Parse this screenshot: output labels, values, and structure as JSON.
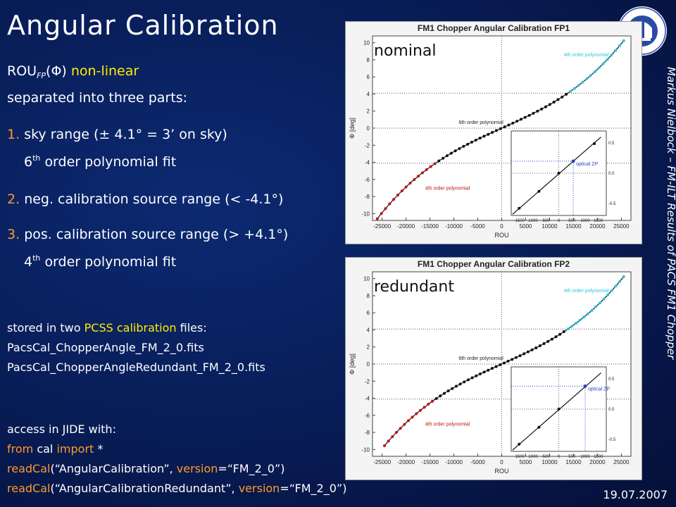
{
  "slide": {
    "title": "Angular Calibration",
    "rou_label": "ROU",
    "rou_sub": "FP",
    "rou_arg": "(Φ)",
    "nonlinear": "non-linear",
    "separated": "separated into three parts:",
    "item1_num": "1.",
    "item1_text": "sky range (± 4.1° = 3’ on sky)",
    "item1_fit_pre": "6",
    "item1_fit_sup": "th",
    "item1_fit_post": "order polynomial fit",
    "item2_num": "2.",
    "item2_text": "neg. calibration source range (< -4.1°)",
    "item3_num": "3.",
    "item3_text": "pos. calibration source range (> +4.1°)",
    "item3_fit_pre": "4",
    "item3_fit_sup": "th",
    "item3_fit_post": "order polynomial fit",
    "stored_pre": "stored in two",
    "stored_pcss": "PCSS",
    "stored_cal": "calibration",
    "stored_post": "files:",
    "file1": "PacsCal_ChopperAngle_FM_2_0.fits",
    "file2": "PacsCal_ChopperAngleRedundant_FM_2_0.fits",
    "access": "access in JIDE with:",
    "code1_from": "from",
    "code1_cal": "cal",
    "code1_import": "import",
    "code1_star": "*",
    "code2_fn": "readCal",
    "code2_arg": "(“AngularCalibration”,",
    "code2_kw": "version",
    "code2_val": "=“FM_2_0”)",
    "code3_fn": "readCal",
    "code3_arg": "(“AngularCalibrationRedundant”,",
    "code3_kw": "version",
    "code3_val": "=“FM_2_0”)",
    "sidebar": "Markus Nielbock – FM-ILT Results of PACS FM1 Chopper",
    "date": "19.07.2007"
  },
  "chart_data": [
    {
      "type": "scatter",
      "title": "FM1 Chopper Angular Calibration FP1",
      "overlay_label": "nominal",
      "xlabel": "ROU",
      "ylabel": "Φ [deg]",
      "xlim": [
        -27000,
        27000
      ],
      "ylim": [
        -10.8,
        10.8
      ],
      "x_ticks": [
        "-25000",
        "-20000",
        "-15000",
        "-10000",
        "-5000",
        "0",
        "5000",
        "10000",
        "15000",
        "20000",
        "25000"
      ],
      "y_ticks": [
        "-10",
        "-8",
        "-6",
        "-4",
        "-2",
        "0",
        "2",
        "4",
        "6",
        "8",
        "10"
      ],
      "annotations": [
        "4th order polynomial",
        "6th order polynomial",
        "4th order polynomial"
      ],
      "x_end": [
        -26000,
        25500
      ],
      "inset": {
        "label": "optical ZP",
        "x_ticks": [
          "-1500",
          "-1000",
          "-500",
          "0",
          "500",
          "1000",
          "1500"
        ],
        "y_ticks": [
          "0.5",
          "0.0",
          "-0.5"
        ],
        "points": [
          [
            -1500,
            -0.58
          ],
          [
            -750,
            -0.3
          ],
          [
            0,
            0.0
          ],
          [
            550,
            0.2
          ],
          [
            1350,
            0.49
          ]
        ],
        "zp": [
          550,
          0.2
        ]
      }
    },
    {
      "type": "scatter",
      "title": "FM1 Chopper Angular Calibration FP2",
      "overlay_label": "redundant",
      "xlabel": "ROU",
      "ylabel": "Φ [deg]",
      "xlim": [
        -27000,
        27000
      ],
      "ylim": [
        -10.8,
        10.8
      ],
      "x_ticks": [
        "-25000",
        "-20000",
        "-15000",
        "-10000",
        "-5000",
        "0",
        "5000",
        "10000",
        "15000",
        "20000",
        "25000"
      ],
      "y_ticks": [
        "-10",
        "-8",
        "-6",
        "-4",
        "-2",
        "0",
        "2",
        "4",
        "6",
        "8",
        "10"
      ],
      "annotations": [
        "4th order polynomial",
        "6th order polynomial",
        "4th order polynomial"
      ],
      "x_end": [
        -24500,
        25500
      ],
      "inset": {
        "label": "optical ZP",
        "x_ticks": [
          "-1500",
          "-1000",
          "-500",
          "0",
          "500",
          "1000",
          "1500"
        ],
        "y_ticks": [
          "0.5",
          "0.0",
          "-0.5"
        ],
        "points": [
          [
            -1500,
            -0.58
          ],
          [
            -750,
            -0.3
          ],
          [
            0,
            0.0
          ],
          [
            1000,
            0.38
          ]
        ],
        "zp": [
          1000,
          0.38
        ]
      }
    }
  ],
  "colors": {
    "red_dots": "#c01010",
    "cyan_dots": "#28c8d8",
    "accent_yellow": "#ffee00",
    "accent_orange": "#ff9a2a"
  }
}
